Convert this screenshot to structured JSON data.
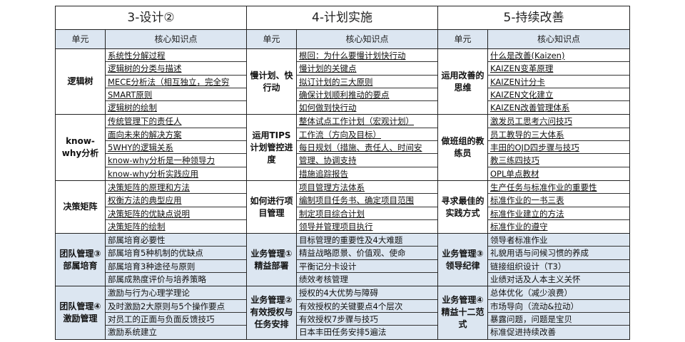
{
  "header_labels": {
    "unit": "单元",
    "points": "核心知识点"
  },
  "colors": {
    "header_bg": "#dce6f1",
    "shaded_rows_bg": "#dce6f1",
    "border": "#222222"
  },
  "blocks": [
    {
      "title": "3-设计②",
      "groups": [
        {
          "unit": "逻辑树",
          "shaded": false,
          "items": [
            "系统性分解过程",
            "逻辑树的分类与描述",
            "MECE分析法（相互独立，完全穷",
            "SMART原则",
            "逻辑树的绘制"
          ]
        },
        {
          "unit": "know-why分析",
          "shaded": false,
          "items": [
            "传统管理下的责任人",
            "面向未来的解决方案",
            "5WHY的逻辑关系",
            "know-why分析是一种领导力",
            "know-why分析实践应用"
          ]
        },
        {
          "unit": "决策矩阵",
          "shaded": false,
          "items": [
            "决策矩阵的原理和方法",
            "权衡方法的典型应用",
            "决策矩阵的优缺点说明",
            "决策矩阵的绘制"
          ]
        },
        {
          "unit": "团队管理③部属培育",
          "shaded": true,
          "items": [
            "部属培育必要性",
            "部属培育5种机制的优缺点",
            "部属培育3种途径与原则",
            "部属成熟度评价与培养策略"
          ]
        },
        {
          "unit": "团队管理④激励管理",
          "shaded": true,
          "items": [
            "激励与行为心理学理论",
            "及时激励2大原则与5个操作要点",
            "对员工的正面与负面反馈技巧",
            "激励系统建立"
          ]
        }
      ]
    },
    {
      "title": "4-计划实施",
      "groups": [
        {
          "unit": "慢计划、快行动",
          "shaded": false,
          "items": [
            "根回：为什么要慢计划快行动",
            "慢计划的关键点",
            "拟订计划的三大原则",
            "确保计划顺利推动的要点",
            "如何做到快行动"
          ]
        },
        {
          "unit": "运用TIPS计划管控进度",
          "shaded": false,
          "items": [
            "整体试点工作计划（宏观计划）",
            "工作流（方向及目标）",
            "每日规划（措施、责任人、时间安",
            "管理、协调支持",
            "措施追踪报告"
          ]
        },
        {
          "unit": "如何进行项目管理",
          "shaded": false,
          "items": [
            "项目管理方法体系",
            "编制项目任务书、确定项目范围",
            "制定项目综合计划",
            "领导并管理项目执行"
          ]
        },
        {
          "unit": "业务管理①精益部署",
          "shaded": true,
          "items": [
            "目标管理的重要性及4大难题",
            "精益战略愿景、价值观、使命",
            "平衡记分卡设计",
            "绩效考核管理"
          ]
        },
        {
          "unit": "业务管理②有效授权与任务安排",
          "shaded": true,
          "items": [
            "授权的4大优势与障碍",
            "有效授权的关键要点4个层次",
            "有效授权7步骤与技巧",
            "日本丰田任务安排5遍法"
          ]
        }
      ]
    },
    {
      "title": "5-持续改善",
      "groups": [
        {
          "unit": "运用改善的思维",
          "shaded": false,
          "items": [
            "什么是改善(Kaizen)",
            "KAIZEN变革原理",
            "KAIZEN计分卡",
            "KAIZEN文化建立",
            "KAIZEN改善管理体系"
          ]
        },
        {
          "unit": "做班组的教练员",
          "shaded": false,
          "items": [
            "激发员工思考六问技巧",
            "员工教导的三大体系",
            "丰田的OJD四步骤与技巧",
            "教三练四技巧",
            "OPL单点教材"
          ]
        },
        {
          "unit": "寻求最佳的实践方式",
          "shaded": false,
          "items": [
            "生产任务与标准作业的重要性",
            "标准作业的一书三表",
            "标准作业建立的方法",
            "标准作业的遵守"
          ]
        },
        {
          "unit": "业务管理③领导纪律",
          "shaded": true,
          "items": [
            "领导者标准作业",
            "礼貌用语与问候习惯的养成",
            "链接组织设计（T3）",
            "业绩对话及人本主义关怀"
          ]
        },
        {
          "unit": "业务管理④精益十二范式",
          "shaded": true,
          "items": [
            "总体优化（减少浪费）",
            "市场导向（流动&拉动）",
            "暴露问题，问题是宝贝",
            "标准促进持续改善"
          ]
        }
      ]
    }
  ]
}
